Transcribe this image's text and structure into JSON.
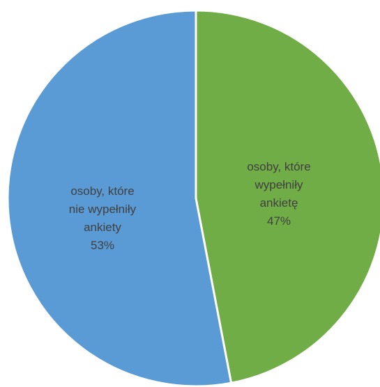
{
  "chart_data": {
    "type": "pie",
    "title": "",
    "slices": [
      {
        "label_lines": [
          "osoby, które",
          "wypełniły",
          "ankietę"
        ],
        "percent_label": "47%",
        "value": 47,
        "color": "#70ad47"
      },
      {
        "label_lines": [
          "osoby, które",
          "nie wypełniły",
          "ankiety"
        ],
        "percent_label": "53%",
        "value": 53,
        "color": "#5b9bd5"
      }
    ],
    "start_angle_deg": 0,
    "direction": "clockwise",
    "legend": "none",
    "border_color": "#ffffff"
  }
}
